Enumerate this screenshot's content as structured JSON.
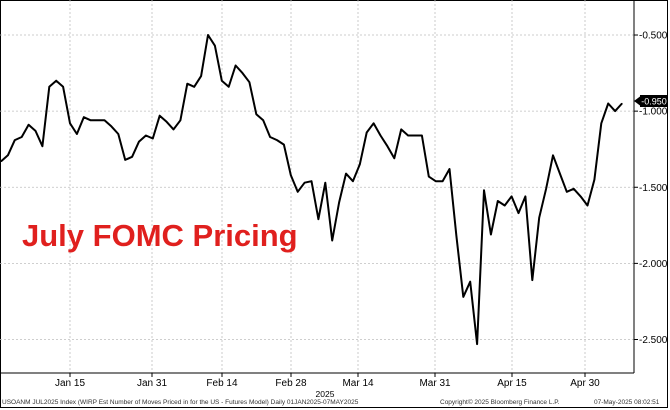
{
  "chart_data": {
    "type": "line",
    "title": "July FOMC Pricing",
    "year_label": "2025",
    "x_ticks": [
      "Jan 15",
      "Jan 31",
      "Feb 14",
      "Feb 28",
      "Mar 14",
      "Mar 31",
      "Apr 15",
      "Apr 30"
    ],
    "y_ticks": [
      "-0.500",
      "-1.000",
      "-1.500",
      "-2.000",
      "-2.500"
    ],
    "y_tick_values": [
      -0.5,
      -1.0,
      -1.5,
      -2.0,
      -2.5
    ],
    "ylim": [
      -2.72,
      -0.27
    ],
    "last_value_label": "-0.950",
    "grid": true,
    "series": [
      {
        "values": [
          -1.33,
          -1.29,
          -1.19,
          -1.17,
          -1.09,
          -1.13,
          -1.23,
          -0.84,
          -0.8,
          -0.84,
          -1.08,
          -1.15,
          -1.04,
          -1.06,
          -1.06,
          -1.06,
          -1.1,
          -1.15,
          -1.32,
          -1.3,
          -1.2,
          -1.16,
          -1.18,
          -1.03,
          -1.07,
          -1.12,
          -1.06,
          -0.82,
          -0.84,
          -0.77,
          -0.5,
          -0.57,
          -0.8,
          -0.84,
          -0.7,
          -0.75,
          -0.81,
          -1.02,
          -1.06,
          -1.17,
          -1.19,
          -1.22,
          -1.42,
          -1.53,
          -1.47,
          -1.46,
          -1.71,
          -1.47,
          -1.85,
          -1.6,
          -1.41,
          -1.46,
          -1.35,
          -1.14,
          -1.08,
          -1.16,
          -1.23,
          -1.31,
          -1.12,
          -1.16,
          -1.16,
          -1.16,
          -1.43,
          -1.46,
          -1.46,
          -1.38,
          -1.82,
          -2.22,
          -2.12,
          -2.53,
          -1.52,
          -1.81,
          -1.59,
          -1.62,
          -1.56,
          -1.67,
          -1.56,
          -2.11,
          -1.7,
          -1.51,
          -1.29,
          -1.41,
          -1.53,
          -1.51,
          -1.56,
          -1.62,
          -1.45,
          -1.08,
          -0.95,
          -1.0,
          -0.95
        ]
      }
    ]
  },
  "footer": {
    "left": "USOANM JUL2025 Index (WIRP Est Number of Moves Priced in for the US - Futures Model)  Daily 01JAN2025-07MAY2025",
    "center": "Copyright© 2025 Bloomberg Finance L.P.",
    "right": "07-May-2025 08:02:51"
  },
  "colors": {
    "line": "#000000",
    "title": "#e0201e",
    "grid": "#bfbfbf"
  }
}
